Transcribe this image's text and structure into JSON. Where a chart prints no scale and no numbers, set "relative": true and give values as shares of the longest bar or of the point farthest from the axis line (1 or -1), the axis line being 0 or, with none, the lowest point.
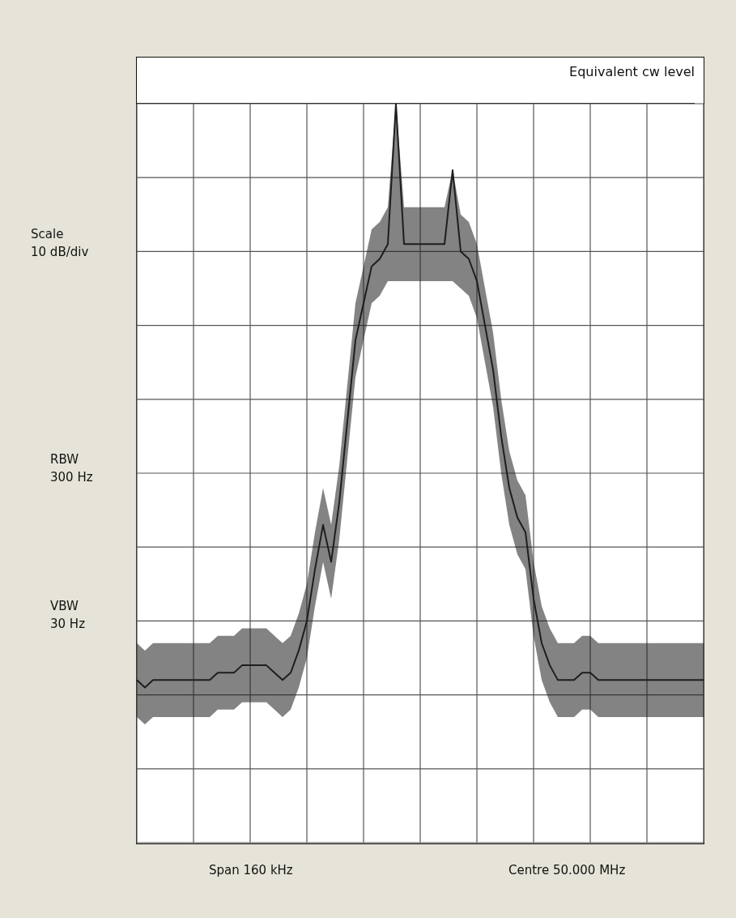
{
  "chart_data": {
    "type": "line",
    "title": "Equivalent cw level",
    "relative": true,
    "grid": true,
    "marker": "none",
    "annotations": [
      "Scale\n10 dB/div",
      "RBW\n300 Hz",
      "VBW\n30 Hz",
      "Span 160 kHz",
      "Centre 50.000 MHz"
    ],
    "categories": [
      null,
      null,
      null,
      null,
      null,
      null,
      null,
      null,
      null,
      null,
      null,
      null,
      null,
      null,
      null,
      null,
      null,
      null,
      null,
      null,
      null,
      null,
      null,
      null,
      null,
      null,
      null,
      null,
      null,
      null,
      null,
      null,
      null,
      null,
      null,
      null,
      null,
      null,
      null,
      null,
      null,
      null,
      null,
      null,
      null,
      null,
      null,
      null,
      null,
      null,
      null,
      null,
      null,
      null,
      null,
      null,
      null,
      null,
      null,
      null,
      null,
      null,
      null,
      null,
      null,
      null,
      null,
      null,
      null,
      null,
      null
    ],
    "series": [
      {
        "color": "#1e1e1e",
        "values": [
          0.22,
          0.21,
          0.22,
          0.22,
          0.22,
          0.22,
          0.22,
          0.22,
          0.22,
          0.22,
          0.23,
          0.23,
          0.23,
          0.24,
          0.24,
          0.24,
          0.24,
          0.23,
          0.22,
          0.23,
          0.26,
          0.3,
          0.37,
          0.43,
          0.38,
          0.46,
          0.57,
          0.68,
          0.73,
          0.78,
          0.79,
          0.81,
          1,
          0.81,
          0.81,
          0.81,
          0.81,
          0.81,
          0.81,
          0.91,
          0.8,
          0.79,
          0.76,
          0.7,
          0.64,
          0.55,
          0.48,
          0.44,
          0.42,
          0.33,
          0.27,
          0.24,
          0.22,
          0.22,
          0.22,
          0.23,
          0.23,
          0.22,
          0.22,
          0.22,
          0.22,
          0.22,
          0.22,
          0.22,
          0.22,
          0.22,
          0.22,
          0.22,
          0.22,
          0.22,
          0.22
        ],
        "upper": [
          0.27,
          0.26,
          0.27,
          0.27,
          0.27,
          0.27,
          0.27,
          0.27,
          0.27,
          0.27,
          0.28,
          0.28,
          0.28,
          0.29,
          0.29,
          0.29,
          0.29,
          0.28,
          0.27,
          0.28,
          0.31,
          0.35,
          0.42,
          0.48,
          0.43,
          0.51,
          0.62,
          0.73,
          0.78,
          0.83,
          0.84,
          0.86,
          1,
          0.86,
          0.86,
          0.86,
          0.86,
          0.86,
          0.86,
          0.91,
          0.85,
          0.84,
          0.81,
          0.75,
          0.69,
          0.6,
          0.53,
          0.49,
          0.47,
          0.38,
          0.32,
          0.29,
          0.27,
          0.27,
          0.27,
          0.28,
          0.28,
          0.27,
          0.27,
          0.27,
          0.27,
          0.27,
          0.27,
          0.27,
          0.27,
          0.27,
          0.27,
          0.27,
          0.27,
          0.27,
          0.27
        ],
        "lower": [
          0.17,
          0.16,
          0.17,
          0.17,
          0.17,
          0.17,
          0.17,
          0.17,
          0.17,
          0.17,
          0.18,
          0.18,
          0.18,
          0.19,
          0.19,
          0.19,
          0.19,
          0.18,
          0.17,
          0.18,
          0.21,
          0.25,
          0.32,
          0.38,
          0.33,
          0.41,
          0.52,
          0.63,
          0.68,
          0.73,
          0.74,
          0.76,
          0.76,
          0.76,
          0.76,
          0.76,
          0.76,
          0.76,
          0.76,
          0.76,
          0.75,
          0.74,
          0.71,
          0.65,
          0.59,
          0.5,
          0.43,
          0.39,
          0.37,
          0.28,
          0.22,
          0.19,
          0.17,
          0.17,
          0.17,
          0.18,
          0.18,
          0.17,
          0.17,
          0.17,
          0.17,
          0.17,
          0.17,
          0.17,
          0.17,
          0.17,
          0.17,
          0.17,
          0.17,
          0.17,
          0.17
        ]
      }
    ]
  }
}
